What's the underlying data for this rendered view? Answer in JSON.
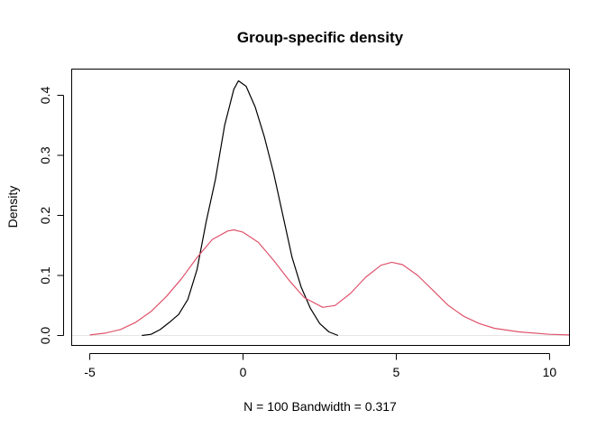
{
  "chart_data": {
    "type": "line",
    "title": "Group-specific density",
    "xlabel": "N = 100   Bandwidth = 0.317",
    "ylabel": "Density",
    "xlim": [
      -5.59,
      10.65
    ],
    "ylim": [
      -0.0165,
      0.4436
    ],
    "xticks": [
      -5,
      0,
      5,
      10
    ],
    "xtick_labels": [
      "-5",
      "0",
      "5",
      "10"
    ],
    "yticks": [
      0.0,
      0.1,
      0.2,
      0.3,
      0.4
    ],
    "ytick_labels": [
      "0.0",
      "0.1",
      "0.2",
      "0.3",
      "0.4"
    ],
    "grid": false,
    "zero_line": true,
    "zero_line_color": "#e6e6e6",
    "series": [
      {
        "color": "#000000",
        "x": [
          -3.3,
          -3.0,
          -2.7,
          -2.4,
          -2.1,
          -1.8,
          -1.5,
          -1.2,
          -0.9,
          -0.6,
          -0.3,
          -0.15,
          0.1,
          0.4,
          0.7,
          1.0,
          1.3,
          1.6,
          1.9,
          2.2,
          2.5,
          2.8,
          3.1
        ],
        "y": [
          0.0,
          0.002,
          0.01,
          0.022,
          0.035,
          0.06,
          0.11,
          0.19,
          0.26,
          0.35,
          0.41,
          0.424,
          0.415,
          0.38,
          0.33,
          0.27,
          0.2,
          0.13,
          0.08,
          0.045,
          0.02,
          0.006,
          0.0
        ]
      },
      {
        "color": "#DF536B",
        "x": [
          -5,
          -4.5,
          -4,
          -3.5,
          -3,
          -2.5,
          -2,
          -1.5,
          -1,
          -0.5,
          -0.3,
          0,
          0.5,
          1,
          1.5,
          2,
          2.6,
          3,
          3.5,
          4,
          4.5,
          4.85,
          5.2,
          5.7,
          6.2,
          6.7,
          7.2,
          7.7,
          8.2,
          9,
          10,
          10.65
        ],
        "y": [
          0.001,
          0.004,
          0.01,
          0.022,
          0.04,
          0.065,
          0.095,
          0.13,
          0.16,
          0.174,
          0.176,
          0.172,
          0.155,
          0.125,
          0.092,
          0.063,
          0.047,
          0.05,
          0.07,
          0.097,
          0.117,
          0.122,
          0.118,
          0.1,
          0.075,
          0.05,
          0.032,
          0.02,
          0.012,
          0.006,
          0.002,
          0.001
        ]
      }
    ]
  }
}
